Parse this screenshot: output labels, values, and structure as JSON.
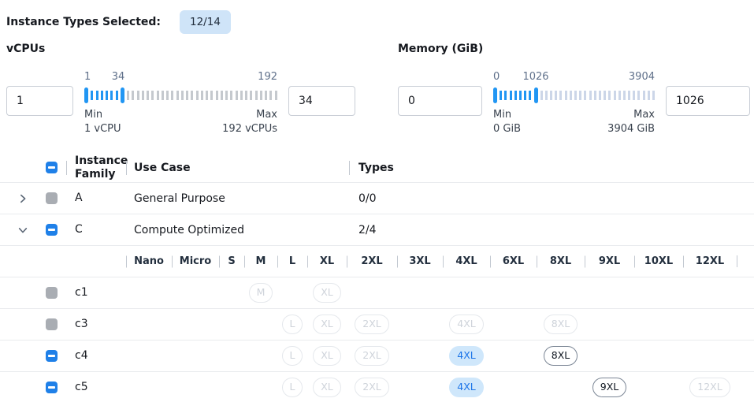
{
  "colors": {
    "accent": "#1f80e8",
    "slider_blue": "#2196f3",
    "badge_bg": "#cfe4f8",
    "selected_pill_bg": "#cfe7fb",
    "selected_pill_text": "#1a73e8",
    "disabled_checkbox_gray": "#a9adb3",
    "tick_off_vcpus": "#c5c9ce",
    "tick_off_memory": "#ccd6e8"
  },
  "header": {
    "label": "Instance Types Selected:",
    "badge": "12/14"
  },
  "filters": {
    "vcpus": {
      "title": "vCPUs",
      "from_value": "1",
      "to_value": "34",
      "scale_start": "1",
      "scale_current": "34",
      "scale_end": "192",
      "min_title": "Min",
      "min_detail": "1 vCPU",
      "max_title": "Max",
      "max_detail": "192 vCPUs",
      "ticks": {
        "between": 6,
        "after": 31
      }
    },
    "memory": {
      "title": "Memory (GiB)",
      "from_value": "0",
      "to_value": "1026",
      "scale_start": "0",
      "scale_current": "1026",
      "scale_end": "3904",
      "min_title": "Min",
      "min_detail": "0 GiB",
      "max_title": "Max",
      "max_detail": "3904 GiB",
      "ticks": {
        "between": 7,
        "after": 24
      }
    }
  },
  "table": {
    "columns": {
      "family": "Instance Family",
      "use_case": "Use Case",
      "types": "Types"
    },
    "header_checkbox": "indeterminate",
    "families": [
      {
        "name": "A",
        "use_case": "General Purpose",
        "types": "0/0",
        "expanded": false,
        "checkbox": "gray"
      },
      {
        "name": "C",
        "use_case": "Compute Optimized",
        "types": "2/4",
        "expanded": true,
        "checkbox": "indeterminate"
      }
    ],
    "sizes": [
      "Nano",
      "Micro",
      "S",
      "M",
      "L",
      "XL",
      "2XL",
      "3XL",
      "4XL",
      "6XL",
      "8XL",
      "9XL",
      "10XL",
      "12XL"
    ],
    "size_rows": [
      {
        "name": "c1",
        "checkbox": "gray",
        "pills": {
          "M": "disabled",
          "XL": "disabled"
        }
      },
      {
        "name": "c3",
        "checkbox": "gray",
        "pills": {
          "L": "disabled",
          "XL": "disabled",
          "2XL": "disabled",
          "4XL": "disabled",
          "8XL": "disabled"
        }
      },
      {
        "name": "c4",
        "checkbox": "indeterminate",
        "pills": {
          "L": "disabled",
          "XL": "disabled",
          "2XL": "disabled",
          "4XL": "selected",
          "8XL": "enabled"
        }
      },
      {
        "name": "c5",
        "checkbox": "indeterminate",
        "pills": {
          "L": "disabled",
          "XL": "disabled",
          "2XL": "disabled",
          "4XL": "selected",
          "9XL": "enabled",
          "12XL": "disabled"
        }
      }
    ]
  }
}
